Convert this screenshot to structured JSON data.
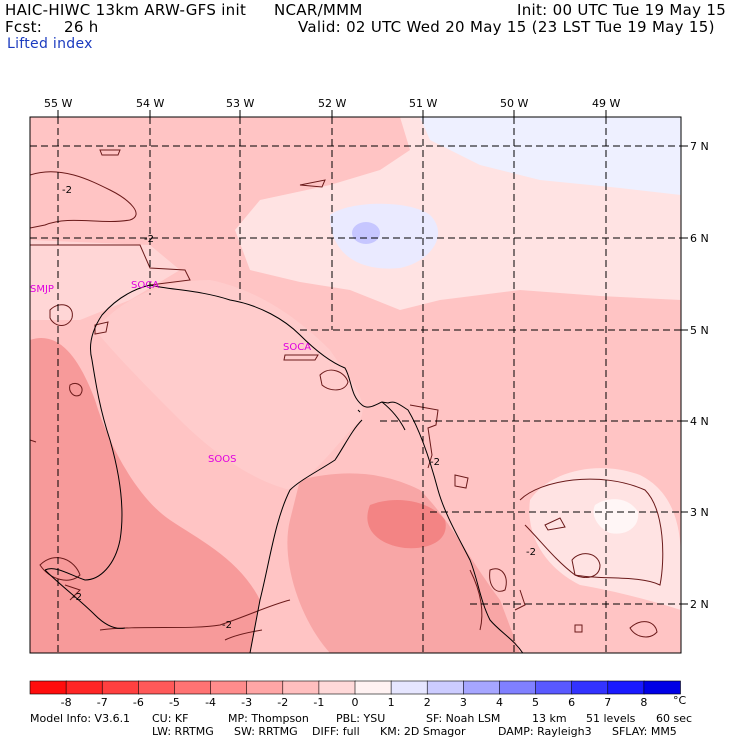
{
  "header": {
    "model_title": "HAIC-HIWC 13km ARW-GFS init",
    "org": "NCAR/MMM",
    "init": "Init: 00 UTC Tue 19 May 15",
    "fcst_label": "Fcst:",
    "fcst_value": "26 h",
    "valid": "Valid: 02 UTC Wed 20 May 15 (23 LST Tue 19 May 15)",
    "field": "Lifted index"
  },
  "map": {
    "lon_labels": [
      "55 W",
      "54 W",
      "53 W",
      "52 W",
      "51 W",
      "50 W",
      "49 W"
    ],
    "lat_labels": [
      "7 N",
      "6 N",
      "5 N",
      "4 N",
      "3 N",
      "2 N"
    ],
    "stations": [
      "SMJP",
      "SOCA",
      "SOCA",
      "SOOS"
    ],
    "contour_labels": [
      "-2",
      "-2",
      "-2",
      "-2",
      "-2",
      "-2"
    ]
  },
  "colorbar": {
    "labels": [
      "-8",
      "-7",
      "-6",
      "-5",
      "-4",
      "-3",
      "-2",
      "-1",
      "0",
      "1",
      "2",
      "3",
      "4",
      "5",
      "6",
      "7",
      "8"
    ],
    "unit": "°C",
    "colors": [
      "#ff0d0d",
      "#ff2626",
      "#ff4040",
      "#ff5959",
      "#ff7373",
      "#ff8c8c",
      "#ffa6a6",
      "#ffbfbf",
      "#ffd9d9",
      "#fff2f2",
      "#e6e6ff",
      "#ccccff",
      "#a6a6ff",
      "#8080ff",
      "#5959ff",
      "#3333ff",
      "#1a1aff",
      "#0000e6"
    ]
  },
  "footer": {
    "line1": [
      "Model Info: V3.6.1",
      "CU: KF",
      "MP: Thompson",
      "PBL: YSU",
      "SF: Noah LSM",
      "13 km",
      "51 levels",
      "60 sec"
    ],
    "line2": [
      "LW: RRTMG",
      "SW: RRTMG",
      "DIFF: full",
      "KM: 2D Smagor",
      "DAMP: Rayleigh3",
      "SFLAY: MM5"
    ]
  }
}
